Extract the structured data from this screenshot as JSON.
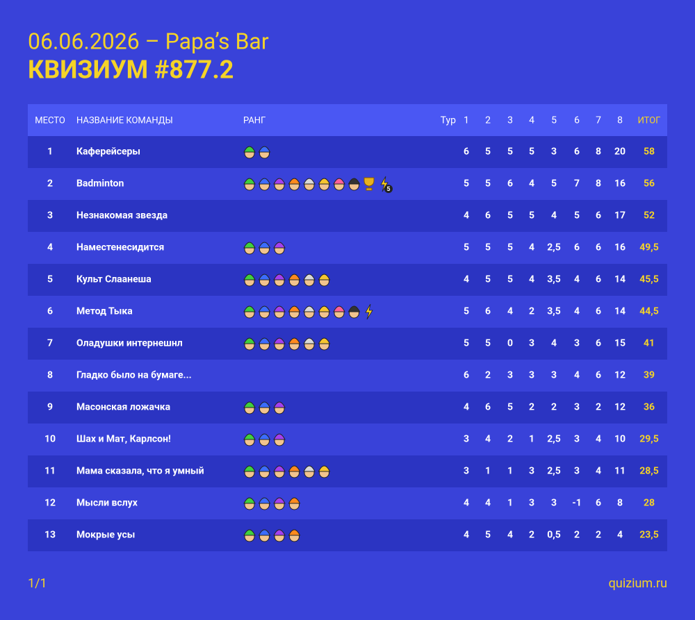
{
  "header": {
    "subtitle": "06.06.2026 – Papa’s Bar",
    "title": "КВИЗИУМ #877.2"
  },
  "table": {
    "columns": [
      "МЕСТО",
      "НАЗВАНИЕ КОМАНДЫ",
      "РАНГ",
      "Тур",
      "1",
      "2",
      "3",
      "4",
      "5",
      "6",
      "7",
      "8",
      "ИТОГ"
    ],
    "rows": [
      {
        "place": "1",
        "name": "Каферейсеры",
        "scores": [
          "6",
          "5",
          "5",
          "5",
          "3",
          "6",
          "8",
          "20"
        ],
        "total": "58"
      },
      {
        "place": "2",
        "name": "Badminton",
        "rank_badge": "5",
        "scores": [
          "5",
          "5",
          "6",
          "4",
          "5",
          "7",
          "8",
          "16"
        ],
        "total": "56"
      },
      {
        "place": "3",
        "name": "Незнакомая звезда",
        "scores": [
          "4",
          "6",
          "5",
          "5",
          "4",
          "5",
          "6",
          "17"
        ],
        "total": "52"
      },
      {
        "place": "4",
        "name": "Наместенесидится",
        "scores": [
          "5",
          "5",
          "5",
          "4",
          "2,5",
          "6",
          "6",
          "16"
        ],
        "total": "49,5"
      },
      {
        "place": "5",
        "name": "Культ Слаанеша",
        "scores": [
          "4",
          "5",
          "5",
          "4",
          "3,5",
          "4",
          "6",
          "14"
        ],
        "total": "45,5"
      },
      {
        "place": "6",
        "name": "Метод Тыка",
        "scores": [
          "5",
          "6",
          "4",
          "2",
          "3,5",
          "4",
          "6",
          "14"
        ],
        "total": "44,5"
      },
      {
        "place": "7",
        "name": "Оладушки интернешнл",
        "scores": [
          "5",
          "5",
          "0",
          "3",
          "4",
          "3",
          "6",
          "15"
        ],
        "total": "41"
      },
      {
        "place": "8",
        "name": "Гладко было на бумаге...",
        "scores": [
          "6",
          "2",
          "3",
          "3",
          "3",
          "4",
          "6",
          "12"
        ],
        "total": "39"
      },
      {
        "place": "9",
        "name": "Масонская ложачка",
        "scores": [
          "4",
          "6",
          "5",
          "2",
          "2",
          "3",
          "2",
          "12"
        ],
        "total": "36"
      },
      {
        "place": "10",
        "name": "Шах и Мат, Карлсон!",
        "scores": [
          "3",
          "4",
          "2",
          "1",
          "2,5",
          "3",
          "4",
          "10"
        ],
        "total": "29,5"
      },
      {
        "place": "11",
        "name": "Мама сказала, что я умный",
        "scores": [
          "3",
          "1",
          "1",
          "3",
          "2,5",
          "3",
          "4",
          "11"
        ],
        "total": "28,5"
      },
      {
        "place": "12",
        "name": "Мысли вслух",
        "scores": [
          "4",
          "4",
          "1",
          "3",
          "3",
          "-1",
          "6",
          "8"
        ],
        "total": "28"
      },
      {
        "place": "13",
        "name": "Мокрые усы",
        "scores": [
          "4",
          "5",
          "4",
          "2",
          "0,5",
          "2",
          "2",
          "4"
        ],
        "total": "23,5"
      }
    ]
  },
  "footer": {
    "page": "1/1",
    "site": "quizium.ru"
  }
}
